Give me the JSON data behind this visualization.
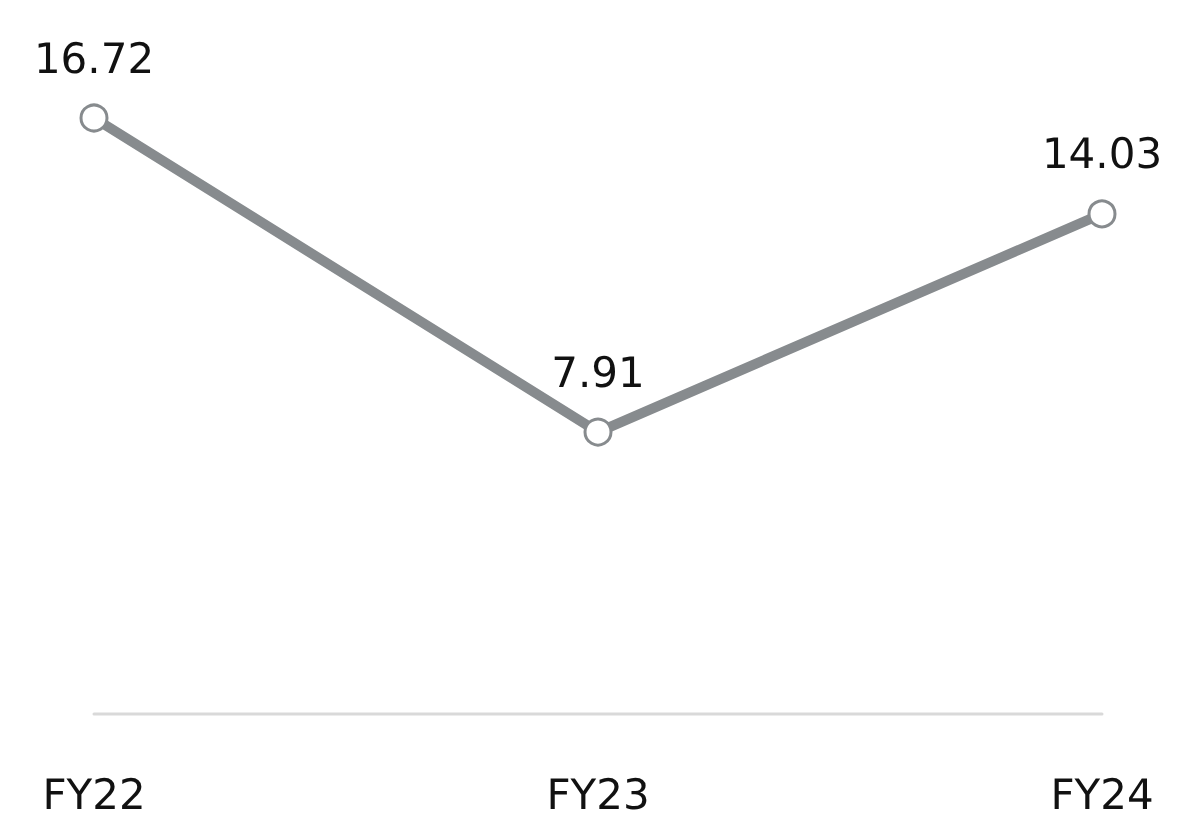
{
  "chart_data": {
    "type": "line",
    "categories": [
      "FY22",
      "FY23",
      "FY24"
    ],
    "series": [
      {
        "color": "#878b8e",
        "values": [
          16.72,
          7.91,
          14.03
        ]
      }
    ],
    "data_labels": true,
    "marker": "circle",
    "line_style": "solid",
    "grid": false
  }
}
